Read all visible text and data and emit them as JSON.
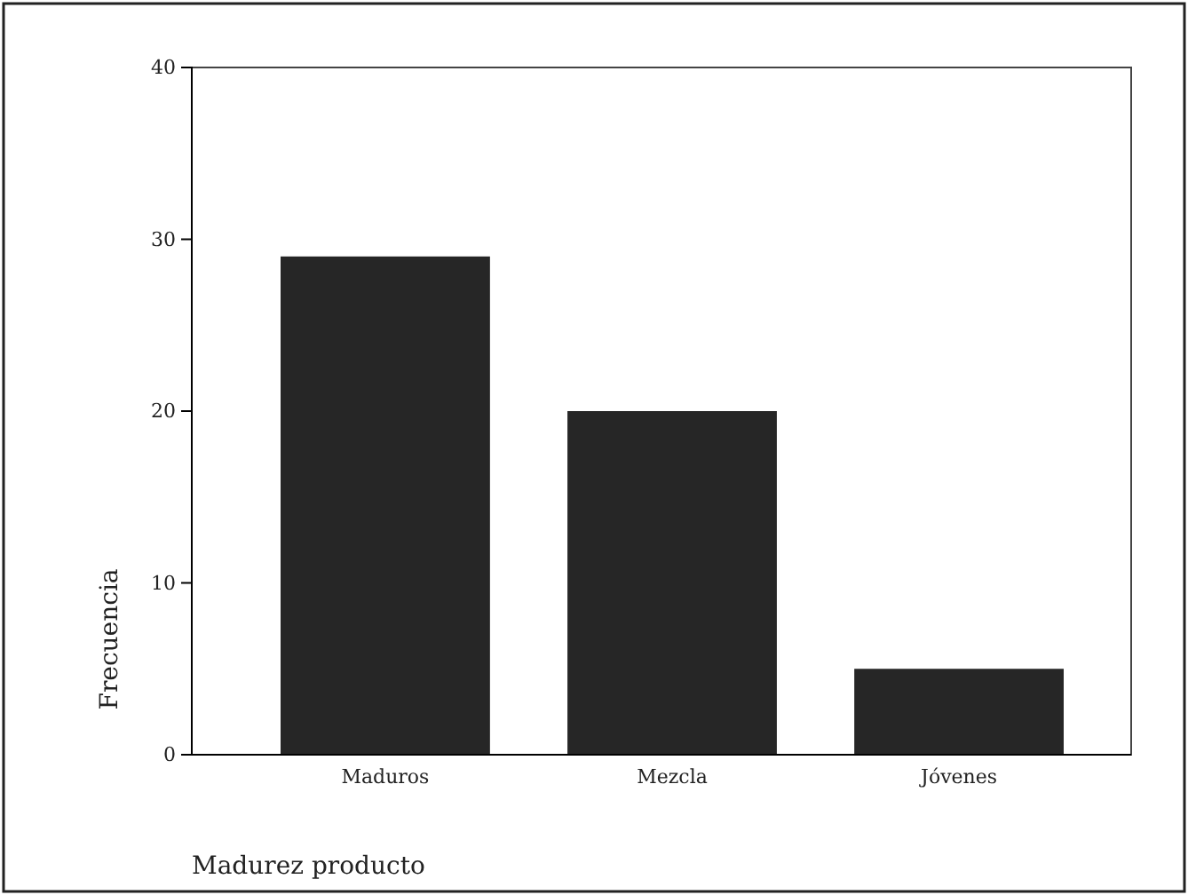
{
  "chart_data": {
    "type": "bar",
    "xlabel": "Madurez producto",
    "ylabel": "Frecuencia",
    "categories": [
      "Maduros",
      "Mezcla",
      "Jóvenes"
    ],
    "values": [
      29,
      20,
      5
    ],
    "color": "#262626",
    "ylim": [
      0,
      40
    ],
    "yticks": [
      0,
      10,
      20,
      30,
      40
    ]
  }
}
